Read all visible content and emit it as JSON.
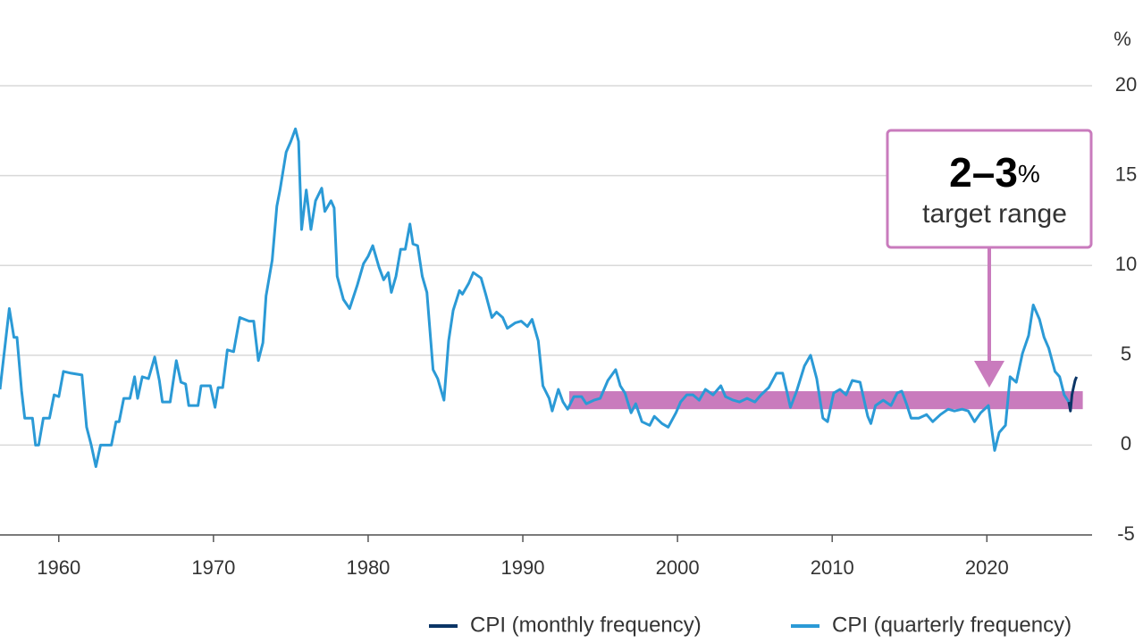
{
  "chart_data": {
    "type": "line",
    "unit_label": "%",
    "xlim": [
      1956.2,
      2026.8
    ],
    "ylim": [
      -5,
      20
    ],
    "xticks": [
      1960,
      1970,
      1980,
      1990,
      2000,
      2010,
      2020
    ],
    "yticks": [
      -5,
      0,
      5,
      10,
      15,
      20
    ],
    "grid": true,
    "target_band": {
      "x": [
        1993,
        2026.2
      ],
      "y": [
        2,
        3
      ],
      "color": "#c97bbd"
    },
    "annotation": {
      "value": "2–3",
      "unit": "%",
      "text": "target range"
    },
    "series": [
      {
        "name": "CPI (monthly frequency)",
        "color": "#0b3566",
        "x": [
          2025.3,
          2025.4,
          2025.5,
          2025.6,
          2025.7,
          2025.8
        ],
        "values": [
          2.4,
          1.9,
          2.8,
          3.2,
          3.6,
          3.8
        ]
      },
      {
        "name": "CPI (quarterly frequency)",
        "color": "#2b9ad6",
        "x": [
          1956.2,
          1956.8,
          1957.1,
          1957.3,
          1957.6,
          1957.8,
          1958.3,
          1958.5,
          1958.7,
          1959.0,
          1959.4,
          1959.7,
          1960.0,
          1960.3,
          1960.8,
          1961.5,
          1961.8,
          1962.1,
          1962.4,
          1962.7,
          1963.4,
          1963.7,
          1963.9,
          1964.2,
          1964.6,
          1964.9,
          1965.1,
          1965.4,
          1965.8,
          1966.2,
          1966.5,
          1966.7,
          1967.2,
          1967.6,
          1967.9,
          1968.2,
          1968.4,
          1969.0,
          1969.2,
          1969.8,
          1970.1,
          1970.3,
          1970.6,
          1970.9,
          1971.3,
          1971.7,
          1972.3,
          1972.6,
          1972.9,
          1973.2,
          1973.4,
          1973.8,
          1974.1,
          1974.3,
          1974.7,
          1975.0,
          1975.3,
          1975.5,
          1975.7,
          1976.0,
          1976.3,
          1976.6,
          1977.0,
          1977.2,
          1977.6,
          1977.8,
          1978.0,
          1978.4,
          1978.8,
          1979.3,
          1979.7,
          1980.0,
          1980.3,
          1980.7,
          1981.0,
          1981.3,
          1981.5,
          1981.8,
          1982.1,
          1982.4,
          1982.7,
          1982.9,
          1983.2,
          1983.5,
          1983.8,
          1984.2,
          1984.5,
          1984.9,
          1985.2,
          1985.5,
          1985.9,
          1986.1,
          1986.5,
          1986.8,
          1987.3,
          1987.6,
          1988.0,
          1988.3,
          1988.7,
          1989.0,
          1989.5,
          1989.9,
          1990.3,
          1990.6,
          1991.0,
          1991.3,
          1991.7,
          1991.9,
          1992.3,
          1992.6,
          1992.9,
          1993.3,
          1993.8,
          1994.1,
          1994.6,
          1995.0,
          1995.5,
          1996.0,
          1996.3,
          1996.6,
          1997.0,
          1997.3,
          1997.7,
          1998.2,
          1998.5,
          1999.0,
          1999.4,
          1999.9,
          2000.2,
          2000.6,
          2001.0,
          2001.4,
          2001.8,
          2002.3,
          2002.8,
          2003.1,
          2003.6,
          2004.0,
          2004.5,
          2005.0,
          2005.4,
          2005.9,
          2006.4,
          2006.8,
          2007.3,
          2007.7,
          2008.2,
          2008.6,
          2009.0,
          2009.4,
          2009.7,
          2010.1,
          2010.5,
          2010.9,
          2011.3,
          2011.8,
          2012.3,
          2012.5,
          2012.8,
          2013.3,
          2013.8,
          2014.2,
          2014.5,
          2014.8,
          2015.1,
          2015.6,
          2016.1,
          2016.5,
          2017.0,
          2017.5,
          2017.9,
          2018.4,
          2018.8,
          2019.2,
          2019.6,
          2020.1,
          2020.5,
          2020.8,
          2021.2,
          2021.5,
          2021.9,
          2022.3,
          2022.7,
          2023.0,
          2023.4,
          2023.7,
          2024.0,
          2024.4,
          2024.7,
          2025.0,
          2025.3
        ],
        "values": [
          3.1,
          7.6,
          6.0,
          6.0,
          3.0,
          1.5,
          1.5,
          0.0,
          0.0,
          1.5,
          1.5,
          2.8,
          2.7,
          4.1,
          4.0,
          3.9,
          1.0,
          0.0,
          -1.2,
          0.0,
          0.0,
          1.3,
          1.3,
          2.6,
          2.6,
          3.8,
          2.6,
          3.8,
          3.7,
          4.9,
          3.6,
          2.4,
          2.4,
          4.7,
          3.5,
          3.4,
          2.2,
          2.2,
          3.3,
          3.3,
          2.1,
          3.2,
          3.2,
          5.3,
          5.2,
          7.1,
          6.9,
          6.9,
          4.7,
          5.7,
          8.3,
          10.3,
          13.3,
          14.2,
          16.3,
          16.9,
          17.6,
          16.9,
          12.0,
          14.2,
          12.0,
          13.6,
          14.3,
          13.0,
          13.6,
          13.2,
          9.4,
          8.1,
          7.6,
          8.9,
          10.1,
          10.5,
          11.1,
          9.9,
          9.2,
          9.6,
          8.5,
          9.4,
          10.9,
          10.9,
          12.3,
          11.2,
          11.1,
          9.4,
          8.5,
          4.2,
          3.7,
          2.5,
          5.8,
          7.5,
          8.6,
          8.4,
          9.0,
          9.6,
          9.3,
          8.4,
          7.1,
          7.4,
          7.1,
          6.5,
          6.8,
          6.9,
          6.6,
          7.0,
          5.8,
          3.3,
          2.6,
          1.9,
          3.1,
          2.4,
          2.0,
          2.7,
          2.7,
          2.3,
          2.5,
          2.6,
          3.6,
          4.2,
          3.3,
          2.9,
          1.8,
          2.3,
          1.3,
          1.1,
          1.6,
          1.2,
          1.0,
          1.8,
          2.4,
          2.8,
          2.8,
          2.5,
          3.1,
          2.8,
          3.3,
          2.7,
          2.5,
          2.4,
          2.6,
          2.4,
          2.8,
          3.2,
          4.0,
          4.0,
          2.1,
          3.0,
          4.4,
          5.0,
          3.7,
          1.5,
          1.3,
          2.9,
          3.1,
          2.8,
          3.6,
          3.5,
          1.6,
          1.2,
          2.2,
          2.5,
          2.2,
          2.9,
          3.0,
          2.3,
          1.5,
          1.5,
          1.7,
          1.3,
          1.7,
          2.0,
          1.9,
          2.0,
          1.9,
          1.3,
          1.8,
          2.2,
          -0.3,
          0.7,
          1.1,
          3.8,
          3.5,
          5.1,
          6.1,
          7.8,
          7.0,
          6.0,
          5.4,
          4.1,
          3.8,
          2.8,
          2.4
        ]
      }
    ]
  }
}
